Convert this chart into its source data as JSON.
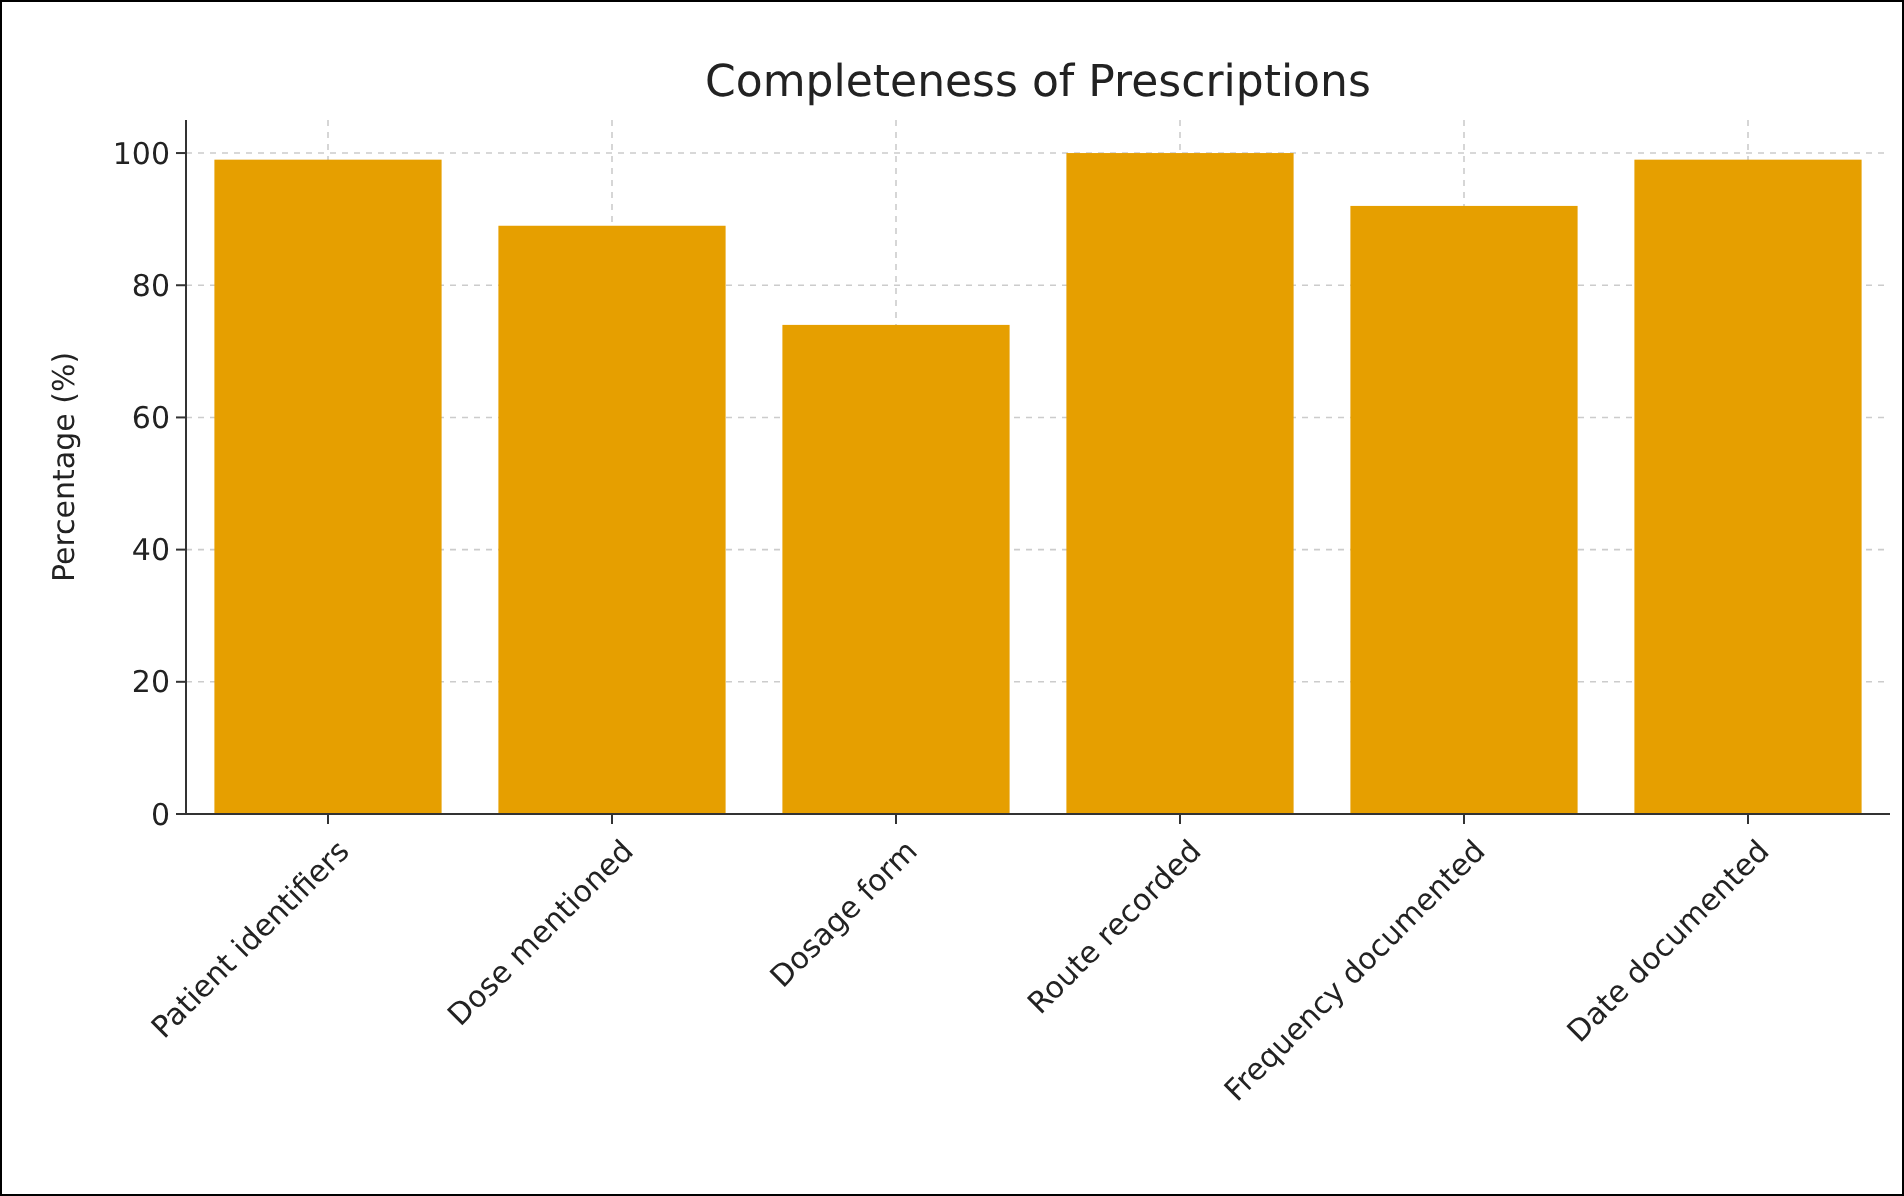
{
  "chart_data": {
    "type": "bar",
    "title": "Completeness of Prescriptions",
    "ylabel": "Percentage (%)",
    "categories": [
      "Patient identifiers",
      "Dose mentioned",
      "Dosage form",
      "Route recorded",
      "Frequency documented",
      "Date documented"
    ],
    "values": [
      99,
      89,
      74,
      100,
      92,
      99
    ],
    "color": "#e69f00",
    "ylim": [
      0,
      105
    ],
    "yticks": [
      0,
      20,
      40,
      60,
      80,
      100
    ],
    "grid": true
  }
}
